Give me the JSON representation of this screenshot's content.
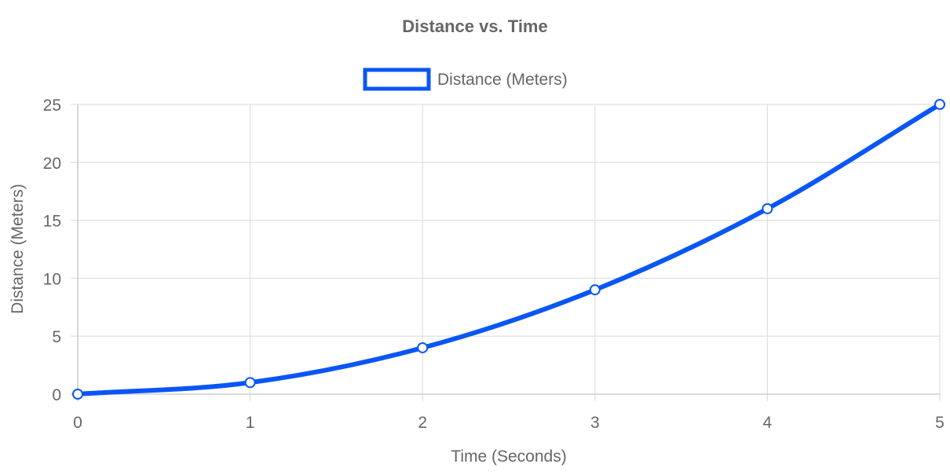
{
  "chart_data": {
    "type": "line",
    "title": "Distance vs. Time",
    "xlabel": "Time (Seconds)",
    "ylabel": "Distance (Meters)",
    "x": [
      0,
      1,
      2,
      3,
      4,
      5
    ],
    "xticks": [
      "0",
      "1",
      "2",
      "3",
      "4",
      "5"
    ],
    "yticks": [
      "0",
      "5",
      "10",
      "15",
      "20",
      "25"
    ],
    "xlim": [
      0,
      5
    ],
    "ylim": [
      0,
      25
    ],
    "grid": true,
    "legend_position": "top-center",
    "series": [
      {
        "name": "Distance (Meters)",
        "values": [
          0,
          1,
          4,
          9,
          16,
          25
        ],
        "color": "#0a56f5"
      }
    ]
  }
}
